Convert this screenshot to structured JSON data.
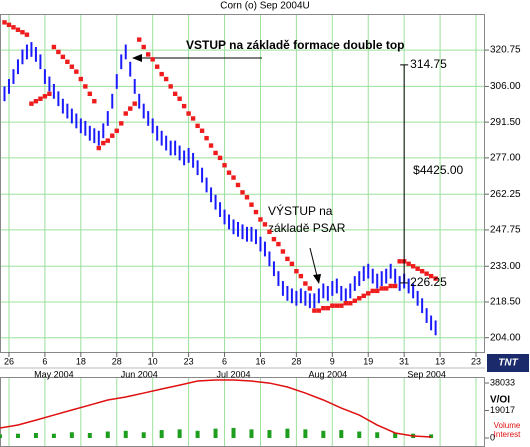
{
  "chart_data": {
    "type": "ohlc",
    "title": "Corn (o) Sep 2004U",
    "xlim": [
      0,
      108
    ],
    "ylim": [
      198.2,
      335.4
    ],
    "yticks": [
      320.75,
      {
        "value": 306,
        "label": "306.00"
      },
      {
        "value": 291.5,
        "label": "291.50"
      },
      {
        "value": 277,
        "label": "277.00"
      },
      262.25,
      247.75,
      {
        "value": 233,
        "label": "233.00"
      },
      {
        "value": 218.5,
        "label": "218.50"
      },
      {
        "value": 204,
        "label": "204.00"
      }
    ],
    "xticks": [
      {
        "value": 2,
        "label": "26"
      },
      {
        "value": 10,
        "label": "6"
      },
      {
        "value": 18,
        "label": "18"
      },
      {
        "value": 26,
        "label": "28"
      },
      {
        "value": 34,
        "label": "10"
      },
      {
        "value": 42,
        "label": "23"
      },
      {
        "value": 50,
        "label": "6"
      },
      {
        "value": 58,
        "label": "16"
      },
      {
        "value": 66,
        "label": "28"
      },
      {
        "value": 74,
        "label": "9"
      },
      {
        "value": 82,
        "label": "19"
      },
      {
        "value": 90,
        "label": "31"
      },
      {
        "value": 98,
        "label": "13"
      },
      {
        "value": 106,
        "label": "23"
      }
    ],
    "months": [
      {
        "value": 12,
        "label": "May 2004"
      },
      {
        "value": 31,
        "label": "Jun 2004"
      },
      {
        "value": 52,
        "label": "Jul 2004"
      },
      {
        "value": 73,
        "label": "Aug 2004"
      },
      {
        "value": 95,
        "label": "Sep 2004"
      }
    ],
    "grid": true,
    "bar_color": "#1a1aff",
    "psar_color": "#ee1c1c",
    "grid_color": "#9be09b",
    "x": [
      1,
      2,
      3,
      4,
      5,
      6,
      7,
      8,
      9,
      10,
      11,
      12,
      13,
      14,
      15,
      16,
      17,
      18,
      19,
      20,
      21,
      22,
      23,
      24,
      25,
      26,
      27,
      28,
      29,
      30,
      31,
      32,
      33,
      34,
      35,
      36,
      37,
      38,
      39,
      40,
      41,
      42,
      43,
      44,
      45,
      46,
      47,
      48,
      49,
      50,
      51,
      52,
      53,
      54,
      55,
      56,
      57,
      58,
      59,
      60,
      61,
      62,
      63,
      64,
      65,
      66,
      67,
      68,
      69,
      70,
      71,
      72,
      73,
      74,
      75,
      76,
      77,
      78,
      79,
      80,
      81,
      82,
      83,
      84,
      85,
      86,
      87,
      88,
      89,
      90,
      91,
      92,
      93,
      94,
      95,
      96,
      97
    ],
    "high": [
      306,
      309,
      313,
      317,
      321,
      323,
      324,
      322,
      319,
      313,
      310,
      307,
      304,
      301,
      299,
      297,
      295,
      293,
      292,
      290,
      289,
      288,
      291,
      296,
      303,
      311,
      319,
      323,
      316,
      309,
      303,
      299,
      296,
      293,
      290,
      288,
      286,
      284,
      284,
      282,
      280,
      281,
      279,
      276,
      273,
      269,
      265,
      262,
      259,
      256,
      254,
      252,
      251,
      250,
      249,
      249,
      248,
      245,
      243,
      239,
      235,
      231,
      227,
      225,
      224,
      223,
      224,
      223,
      222,
      222,
      224,
      226,
      225,
      227,
      228,
      225,
      224,
      226,
      229,
      231,
      233,
      234,
      232,
      230,
      231,
      232,
      234,
      232,
      229,
      230,
      228,
      226,
      223,
      220,
      216,
      213,
      211
    ],
    "low": [
      300,
      303,
      307,
      311,
      315,
      317,
      318,
      316,
      313,
      307,
      304,
      301,
      298,
      295,
      293,
      291,
      289,
      287,
      286,
      284,
      283,
      282,
      285,
      290,
      297,
      305,
      313,
      317,
      310,
      303,
      297,
      293,
      290,
      287,
      284,
      282,
      280,
      278,
      278,
      276,
      274,
      275,
      273,
      270,
      267,
      263,
      259,
      256,
      253,
      250,
      248,
      246,
      245,
      244,
      243,
      243,
      242,
      239,
      237,
      233,
      229,
      225,
      221,
      219,
      218,
      217,
      218,
      217,
      216,
      216,
      218,
      220,
      219,
      221,
      222,
      219,
      218,
      220,
      223,
      225,
      227,
      228,
      226,
      224,
      225,
      226,
      228,
      226,
      223,
      224,
      222,
      220,
      217,
      214,
      210,
      207,
      205
    ],
    "psar": [
      332,
      331,
      330,
      329,
      328,
      327,
      299,
      300,
      301,
      302,
      303,
      322,
      320,
      318,
      316,
      314,
      312,
      309,
      306,
      303,
      300,
      281,
      283,
      284,
      286,
      288,
      291,
      295,
      297,
      299,
      325,
      322,
      319,
      317,
      314,
      311,
      309,
      306,
      303,
      301,
      298,
      295,
      293,
      290,
      288,
      285,
      282,
      279,
      277,
      274,
      271,
      269,
      266,
      263,
      261,
      258,
      255,
      252,
      250,
      247,
      244,
      242,
      239,
      236,
      234,
      231,
      229,
      226,
      224,
      215,
      215,
      216,
      216,
      217,
      217,
      217,
      218,
      218,
      219,
      220,
      221,
      222,
      223,
      223,
      224,
      224,
      225,
      225,
      235,
      235,
      234,
      233,
      232,
      231,
      230,
      229,
      228
    ],
    "annotations": [
      "VSTUP na základě formace double top",
      "VÝSTUP na",
      "základě PSAR"
    ],
    "measure": {
      "x": 90,
      "top": 314.75,
      "bottom": 226.25,
      "label": "$4425.00"
    },
    "logo": "TNT",
    "lower": {
      "type": "volume_oi",
      "label": "V/OI",
      "legend": [
        "Volume",
        "Interest"
      ],
      "ylim": [
        -6200,
        42200
      ],
      "yticks": [
        0,
        19017,
        38033
      ],
      "volume_color": "#1e9e1e",
      "oi_color": "#e01010",
      "x": [
        0,
        4,
        8,
        12,
        16,
        20,
        24,
        28,
        32,
        36,
        40,
        44,
        48,
        52,
        56,
        60,
        64,
        68,
        72,
        76,
        80,
        84,
        88,
        92,
        96
      ],
      "volume": [
        2500,
        3000,
        3500,
        3000,
        4000,
        3500,
        4500,
        5000,
        4000,
        5500,
        6000,
        5000,
        6500,
        7000,
        6000,
        5500,
        6500,
        6000,
        5000,
        5500,
        4500,
        4000,
        3500,
        3000,
        2500
      ],
      "open_interest": [
        6900,
        9000,
        12400,
        15900,
        19400,
        22800,
        26300,
        28400,
        31100,
        33900,
        36600,
        39400,
        40100,
        40100,
        39400,
        38000,
        35300,
        31100,
        26300,
        20700,
        15900,
        9000,
        3500,
        1400,
        700
      ]
    }
  }
}
